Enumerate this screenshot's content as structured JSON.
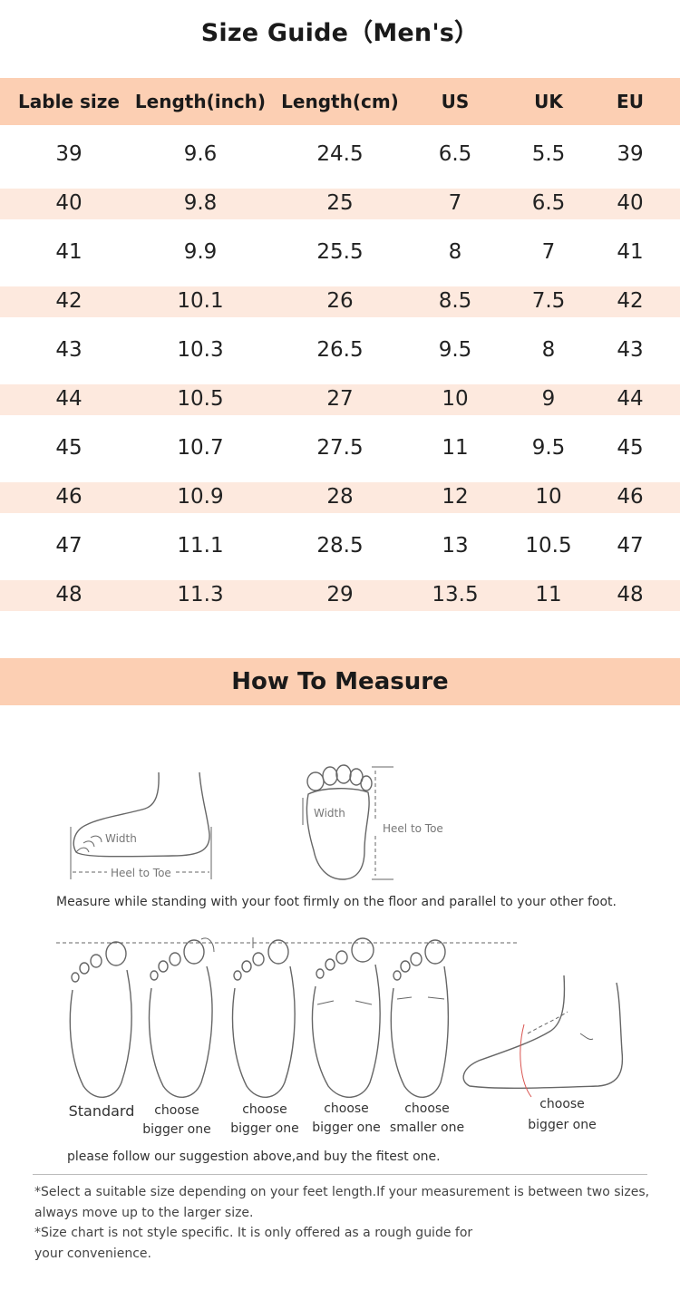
{
  "title": "Size Guide（Men's）",
  "table": {
    "headers": [
      "Lable size",
      "Length(inch)",
      "Length(cm)",
      "US",
      "UK",
      "EU"
    ],
    "rows": [
      [
        "39",
        "9.6",
        "24.5",
        "6.5",
        "5.5",
        "39"
      ],
      [
        "40",
        "9.8",
        "25",
        "7",
        "6.5",
        "40"
      ],
      [
        "41",
        "9.9",
        "25.5",
        "8",
        "7",
        "41"
      ],
      [
        "42",
        "10.1",
        "26",
        "8.5",
        "7.5",
        "42"
      ],
      [
        "43",
        "10.3",
        "26.5",
        "9.5",
        "8",
        "43"
      ],
      [
        "44",
        "10.5",
        "27",
        "10",
        "9",
        "44"
      ],
      [
        "45",
        "10.7",
        "27.5",
        "11",
        "9.5",
        "45"
      ],
      [
        "46",
        "10.9",
        "28",
        "12",
        "10",
        "46"
      ],
      [
        "47",
        "11.1",
        "28.5",
        "13",
        "10.5",
        "47"
      ],
      [
        "48",
        "11.3",
        "29",
        "13.5",
        "11",
        "48"
      ]
    ]
  },
  "measure": {
    "title": "How To Measure",
    "diagram_labels": {
      "width": "Width",
      "heel_to_toe": "Heel to Toe"
    },
    "instruction": "Measure while standing with your foot firmly on the floor and parallel to your other foot.",
    "foot_labels": {
      "standard": "Standard",
      "bigger1": [
        "choose",
        "bigger one"
      ],
      "bigger2": [
        "choose",
        "bigger one"
      ],
      "bigger3": [
        "choose",
        "bigger one"
      ],
      "smaller": [
        "choose",
        "smaller one"
      ],
      "bigger4": [
        "choose",
        "bigger one"
      ]
    },
    "suggestion": "please follow our suggestion above,and buy the fitest one."
  },
  "notes": {
    "line1a": "*Select a suitable size depending on your feet length.If your measurement is between two sizes,",
    "line1b": "always move up to the larger size.",
    "line2a": "*Size chart is not style specific. It is only offered as a rough guide for",
    "line2b": "your convenience."
  }
}
